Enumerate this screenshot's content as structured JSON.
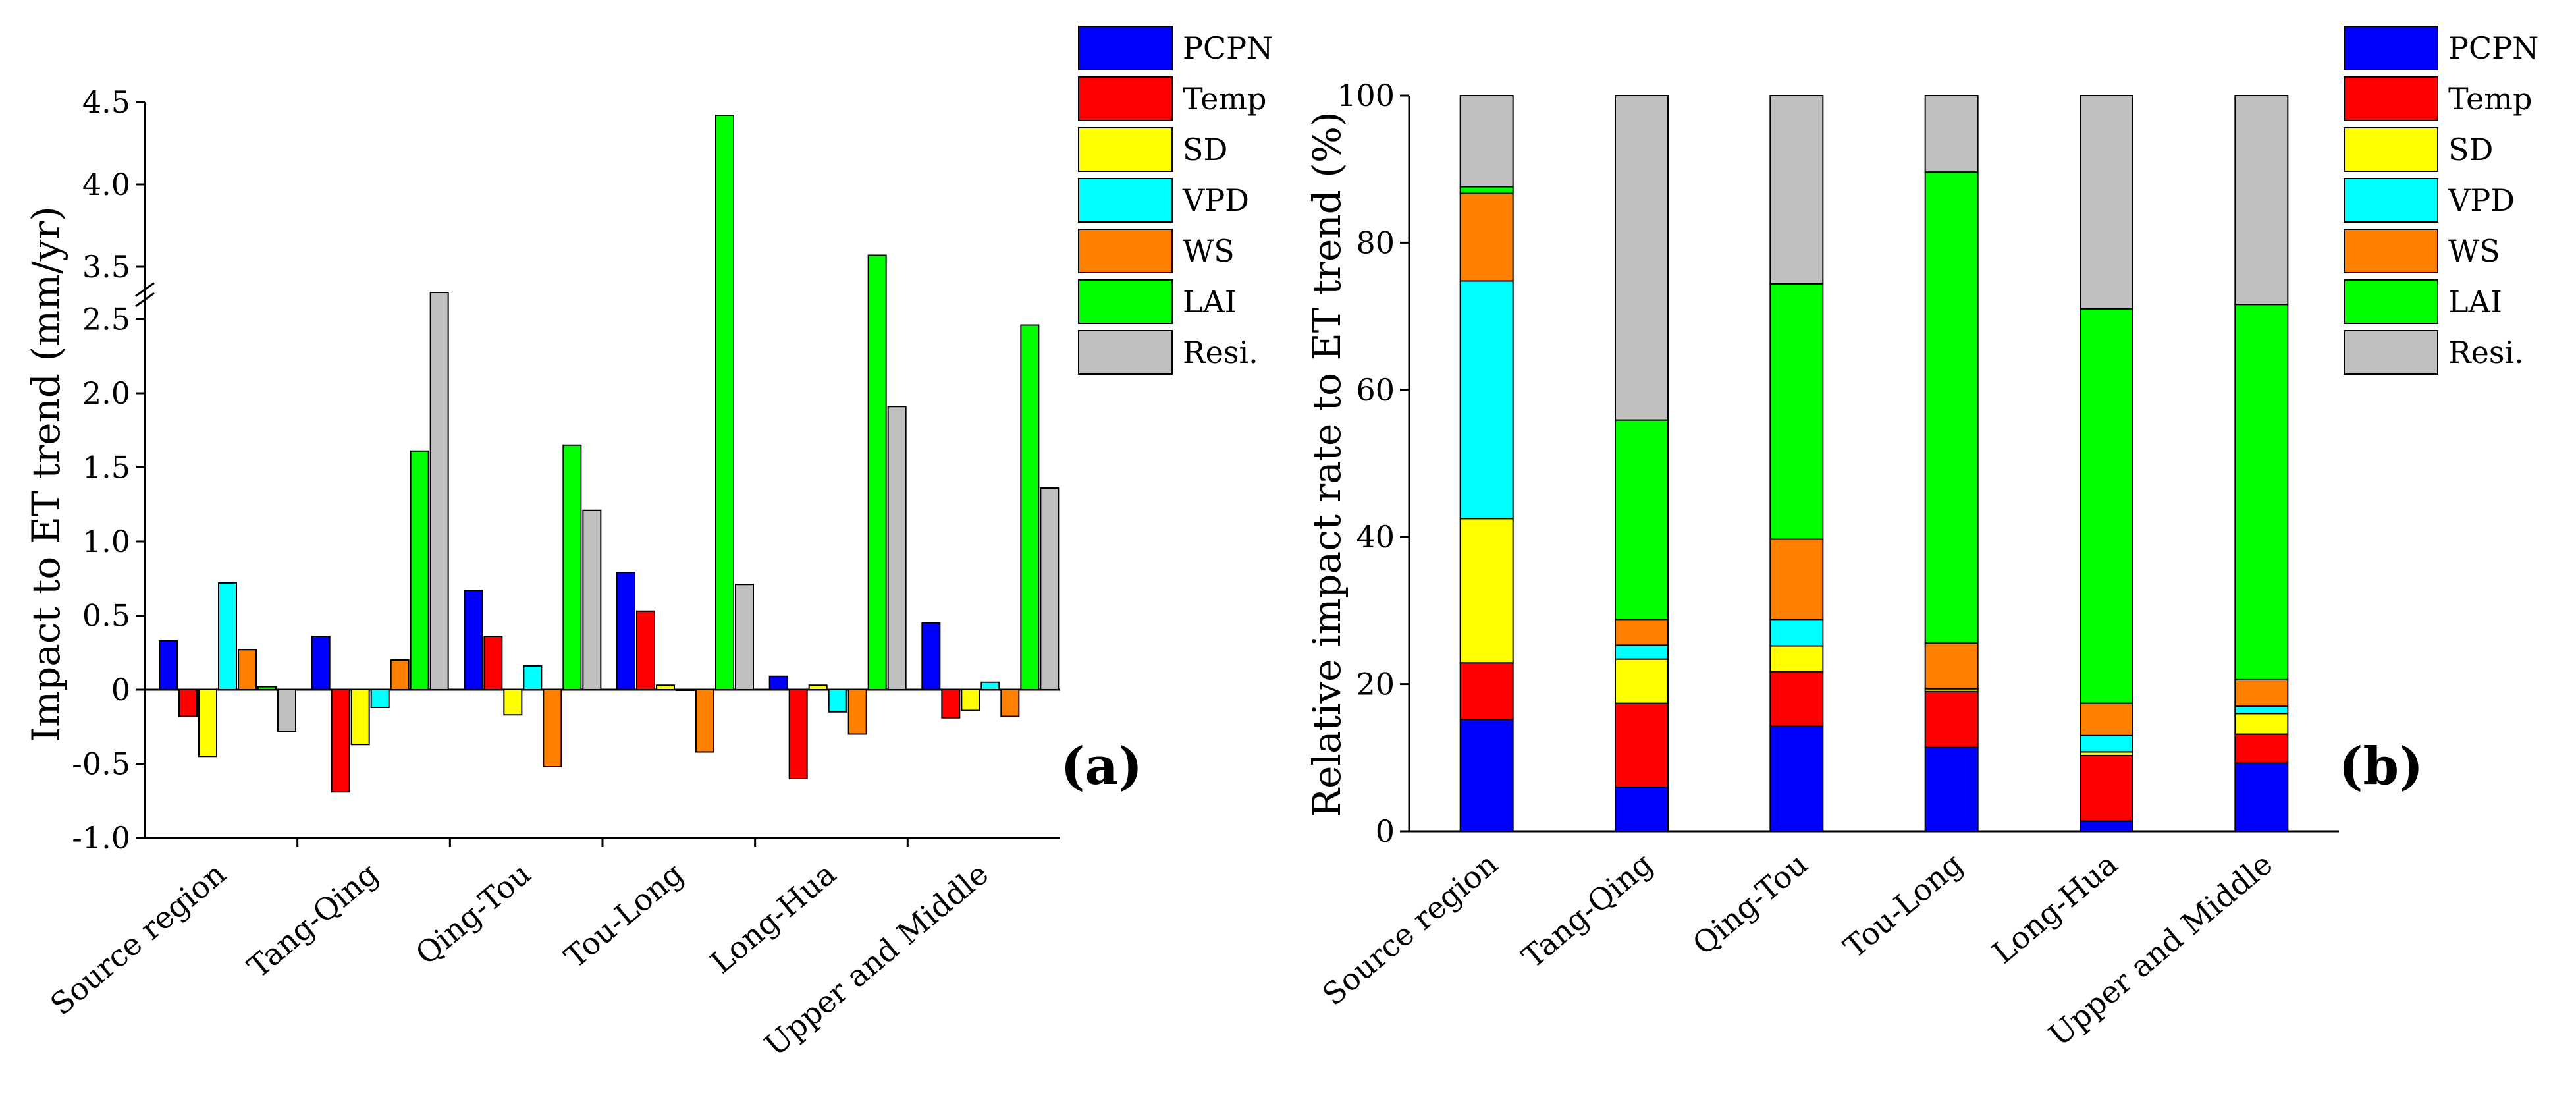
{
  "chart_data": [
    {
      "type": "bar",
      "panel_label": "(a)",
      "title": "",
      "ylabel": "Impact to ET trend (mm/yr)",
      "xlabel": "",
      "categories": [
        "Source region",
        "Tang-Qing",
        "Qing-Tou",
        "Tou-Long",
        "Long-Hua",
        "Upper and Middle"
      ],
      "ylim": [
        -1.0,
        4.5
      ],
      "axis_break": {
        "lower_max": 2.7,
        "upper_min": 3.3
      },
      "yticks_lower": [
        "-1.0",
        "-0.5",
        "0",
        "0.5",
        "1.0",
        "1.5",
        "2.0",
        "2.5"
      ],
      "yticks_upper": [
        "3.5",
        "4.0",
        "4.5"
      ],
      "legend_position": "top-right",
      "series": [
        {
          "name": "PCPN",
          "color": "#0000ff",
          "values": [
            0.33,
            0.36,
            0.67,
            0.79,
            0.09,
            0.45
          ]
        },
        {
          "name": "Temp",
          "color": "#ff0000",
          "values": [
            -0.18,
            -0.69,
            0.36,
            0.53,
            -0.6,
            -0.19
          ]
        },
        {
          "name": "SD",
          "color": "#ffff00",
          "values": [
            -0.45,
            -0.37,
            -0.17,
            0.03,
            0.03,
            -0.14
          ]
        },
        {
          "name": "VPD",
          "color": "#00ffff",
          "values": [
            0.72,
            -0.12,
            0.16,
            0.0,
            -0.15,
            0.05
          ]
        },
        {
          "name": "WS",
          "color": "#ff8000",
          "values": [
            0.27,
            0.2,
            -0.52,
            -0.42,
            -0.3,
            -0.18
          ]
        },
        {
          "name": "LAI",
          "color": "#00ff00",
          "values": [
            0.02,
            1.61,
            1.65,
            4.42,
            3.57,
            2.46
          ]
        },
        {
          "name": "Resi.",
          "color": "#c0c0c0",
          "values": [
            -0.28,
            2.68,
            1.21,
            0.71,
            1.91,
            1.36
          ]
        }
      ]
    },
    {
      "type": "bar",
      "stacked": true,
      "panel_label": "(b)",
      "title": "",
      "ylabel": "Relative impact rate to ET trend (%)",
      "xlabel": "",
      "categories": [
        "Source region",
        "Tang-Qing",
        "Qing-Tou",
        "Tou-Long",
        "Long-Hua",
        "Upper and Middle"
      ],
      "ylim": [
        0,
        100
      ],
      "yticks": [
        "0",
        "20",
        "40",
        "60",
        "80",
        "100"
      ],
      "legend_position": "top-right",
      "series": [
        {
          "name": "PCPN",
          "color": "#0000ff",
          "values": [
            15.2,
            6.0,
            14.3,
            11.4,
            1.4,
            9.3
          ]
        },
        {
          "name": "Temp",
          "color": "#ff0000",
          "values": [
            7.7,
            11.4,
            7.4,
            7.6,
            8.9,
            3.9
          ]
        },
        {
          "name": "SD",
          "color": "#ffff00",
          "values": [
            19.6,
            6.0,
            3.5,
            0.4,
            0.5,
            2.8
          ]
        },
        {
          "name": "VPD",
          "color": "#00ffff",
          "values": [
            32.3,
            1.9,
            3.6,
            0.0,
            2.2,
            1.0
          ]
        },
        {
          "name": "WS",
          "color": "#ff8000",
          "values": [
            11.9,
            3.5,
            10.9,
            6.2,
            4.4,
            3.6
          ]
        },
        {
          "name": "LAI",
          "color": "#00ff00",
          "values": [
            0.9,
            27.1,
            34.7,
            64.0,
            53.6,
            51.0
          ]
        },
        {
          "name": "Resi.",
          "color": "#c0c0c0",
          "values": [
            12.4,
            44.1,
            25.6,
            10.4,
            29.0,
            28.4
          ]
        }
      ]
    }
  ]
}
